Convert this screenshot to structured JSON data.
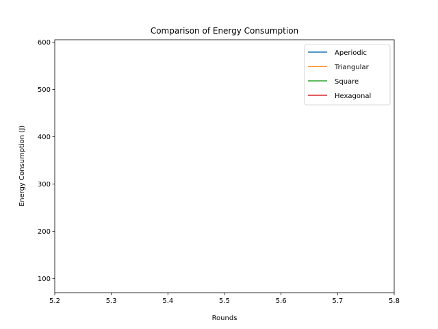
{
  "chart_data": {
    "type": "line",
    "title": "Comparison of Energy Consumption",
    "xlabel": "Rounds",
    "ylabel": "Energy Consumption (J)",
    "xlim": [
      5.2,
      5.8
    ],
    "ylim": [
      70,
      605
    ],
    "xticks": [
      5.2,
      5.3,
      5.4,
      5.5,
      5.6,
      5.7,
      5.8
    ],
    "xtick_labels": [
      "5.2",
      "5.3",
      "5.4",
      "5.5",
      "5.6",
      "5.7",
      "5.8"
    ],
    "yticks": [
      100,
      200,
      300,
      400,
      500,
      600
    ],
    "ytick_labels": [
      "100",
      "200",
      "300",
      "400",
      "500",
      "600"
    ],
    "grid": false,
    "legend_position": "upper right",
    "series": [
      {
        "name": "Aperiodic",
        "color": "#1f77b4",
        "x": [],
        "y": []
      },
      {
        "name": "Triangular",
        "color": "#ff7f0e",
        "x": [],
        "y": []
      },
      {
        "name": "Square",
        "color": "#2ca02c",
        "x": [],
        "y": []
      },
      {
        "name": "Hexagonal",
        "color": "#d62728",
        "x": [],
        "y": []
      }
    ]
  }
}
